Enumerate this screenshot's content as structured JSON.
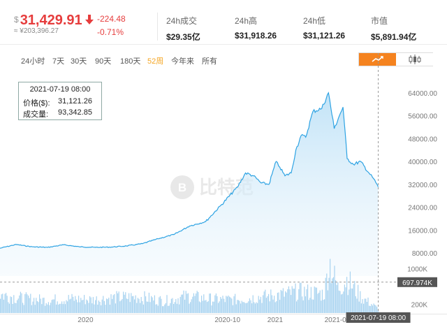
{
  "ticker": {
    "currency_symbol": "$",
    "price": "31,429.91",
    "price_cny": "≈ ¥203,396.27",
    "change_abs": "-224.48",
    "change_pct": "-0.71%",
    "trend_icon": "down-arrow-icon",
    "stats": [
      {
        "label": "24h成交",
        "value": "$29.35亿"
      },
      {
        "label": "24h高",
        "value": "$31,918.26"
      },
      {
        "label": "24h低",
        "value": "$31,121.26"
      },
      {
        "label": "市值",
        "value": "$5,891.94亿"
      }
    ]
  },
  "ranges": {
    "items": [
      "24小时",
      "7天",
      "30天",
      "90天",
      "180天",
      "52周",
      "今年来",
      "所有"
    ],
    "active": "52周"
  },
  "chart_type_switch": {
    "options": [
      "line-chart-icon",
      "candlestick-icon"
    ],
    "active": "line-chart-icon"
  },
  "watermark": {
    "text": "比特范"
  },
  "tooltip": {
    "time": "2021-07-19 08:00",
    "price_label": "价格($):",
    "price_value": "31,121.26",
    "volume_label": "成交量:",
    "volume_value": "93,342.85"
  },
  "crosshair": {
    "volume_value_label": "697.974K",
    "time_label": "2021-07-19 08:00"
  },
  "colors": {
    "line": "#2ea3e3",
    "area": "#bfe2f7",
    "volume": "#a8d3f0",
    "accent": "#f5831f",
    "down": "#e63d3d"
  },
  "chart_data": {
    "type": "line",
    "price": {
      "x": [
        "2019-07-20",
        "2019-08-20",
        "2019-09-20",
        "2019-10-20",
        "2019-11-20",
        "2019-12-20",
        "2020-01-20",
        "2020-02-20",
        "2020-03-20",
        "2020-04-20",
        "2020-05-20",
        "2020-06-20",
        "2020-07-20",
        "2020-08-20",
        "2020-09-20",
        "2020-10-20",
        "2020-11-05",
        "2020-11-20",
        "2020-12-05",
        "2020-12-20",
        "2021-01-03",
        "2021-01-10",
        "2021-01-20",
        "2021-02-01",
        "2021-02-10",
        "2021-02-20",
        "2021-03-01",
        "2021-03-15",
        "2021-04-01",
        "2021-04-14",
        "2021-04-25",
        "2021-05-05",
        "2021-05-12",
        "2021-05-20",
        "2021-06-01",
        "2021-06-15",
        "2021-07-01",
        "2021-07-10",
        "2021-07-19"
      ],
      "values": [
        9700,
        11000,
        10200,
        10000,
        10900,
        10200,
        10000,
        10100,
        10500,
        11300,
        13000,
        14500,
        17500,
        19000,
        25000,
        31000,
        36000,
        35000,
        32500,
        32000,
        40000,
        38000,
        35000,
        36000,
        44000,
        49000,
        48500,
        57500,
        58500,
        64000,
        51500,
        56000,
        59000,
        41000,
        39000,
        40000,
        36000,
        34000,
        31121
      ],
      "ylim": [
        0,
        72000
      ],
      "yticks": [
        8000,
        16000,
        24000,
        32000,
        40000,
        48000,
        56000,
        64000
      ],
      "ytick_labels": [
        "8000.00",
        "16000.00",
        "24000.00",
        "32000.00",
        "40000.00",
        "48000.00",
        "56000.00",
        "64000.00"
      ]
    },
    "volume": {
      "x": [
        "2019-07-20",
        "2019-09-01",
        "2019-10-15",
        "2019-12-01",
        "2020-01-15",
        "2020-03-01",
        "2020-04-15",
        "2020-06-01",
        "2020-07-15",
        "2020-09-01",
        "2020-10-15",
        "2020-12-01",
        "2021-01-15",
        "2021-02-15",
        "2021-03-15",
        "2021-04-05",
        "2021-04-15",
        "2021-05-01",
        "2021-05-19",
        "2021-06-15",
        "2021-07-19"
      ],
      "values": [
        420,
        330,
        290,
        320,
        300,
        350,
        360,
        270,
        380,
        310,
        300,
        360,
        420,
        480,
        460,
        430,
        1150,
        560,
        760,
        360,
        93
      ],
      "ylim": [
        0,
        1200
      ],
      "yticks": [
        200,
        1000
      ],
      "ytick_labels": [
        "200K",
        "1000K"
      ]
    },
    "xaxis": {
      "range": [
        "2019-07-20",
        "2021-07-25"
      ],
      "ticks": [
        "2020-01-01",
        "2020-10-01",
        "2021-01-01",
        "2021-05-01"
      ],
      "tick_labels": [
        "2020",
        "2020-10",
        "2021",
        "2021-05"
      ]
    },
    "crosshair_x": "2021-07-19",
    "grid": false
  }
}
